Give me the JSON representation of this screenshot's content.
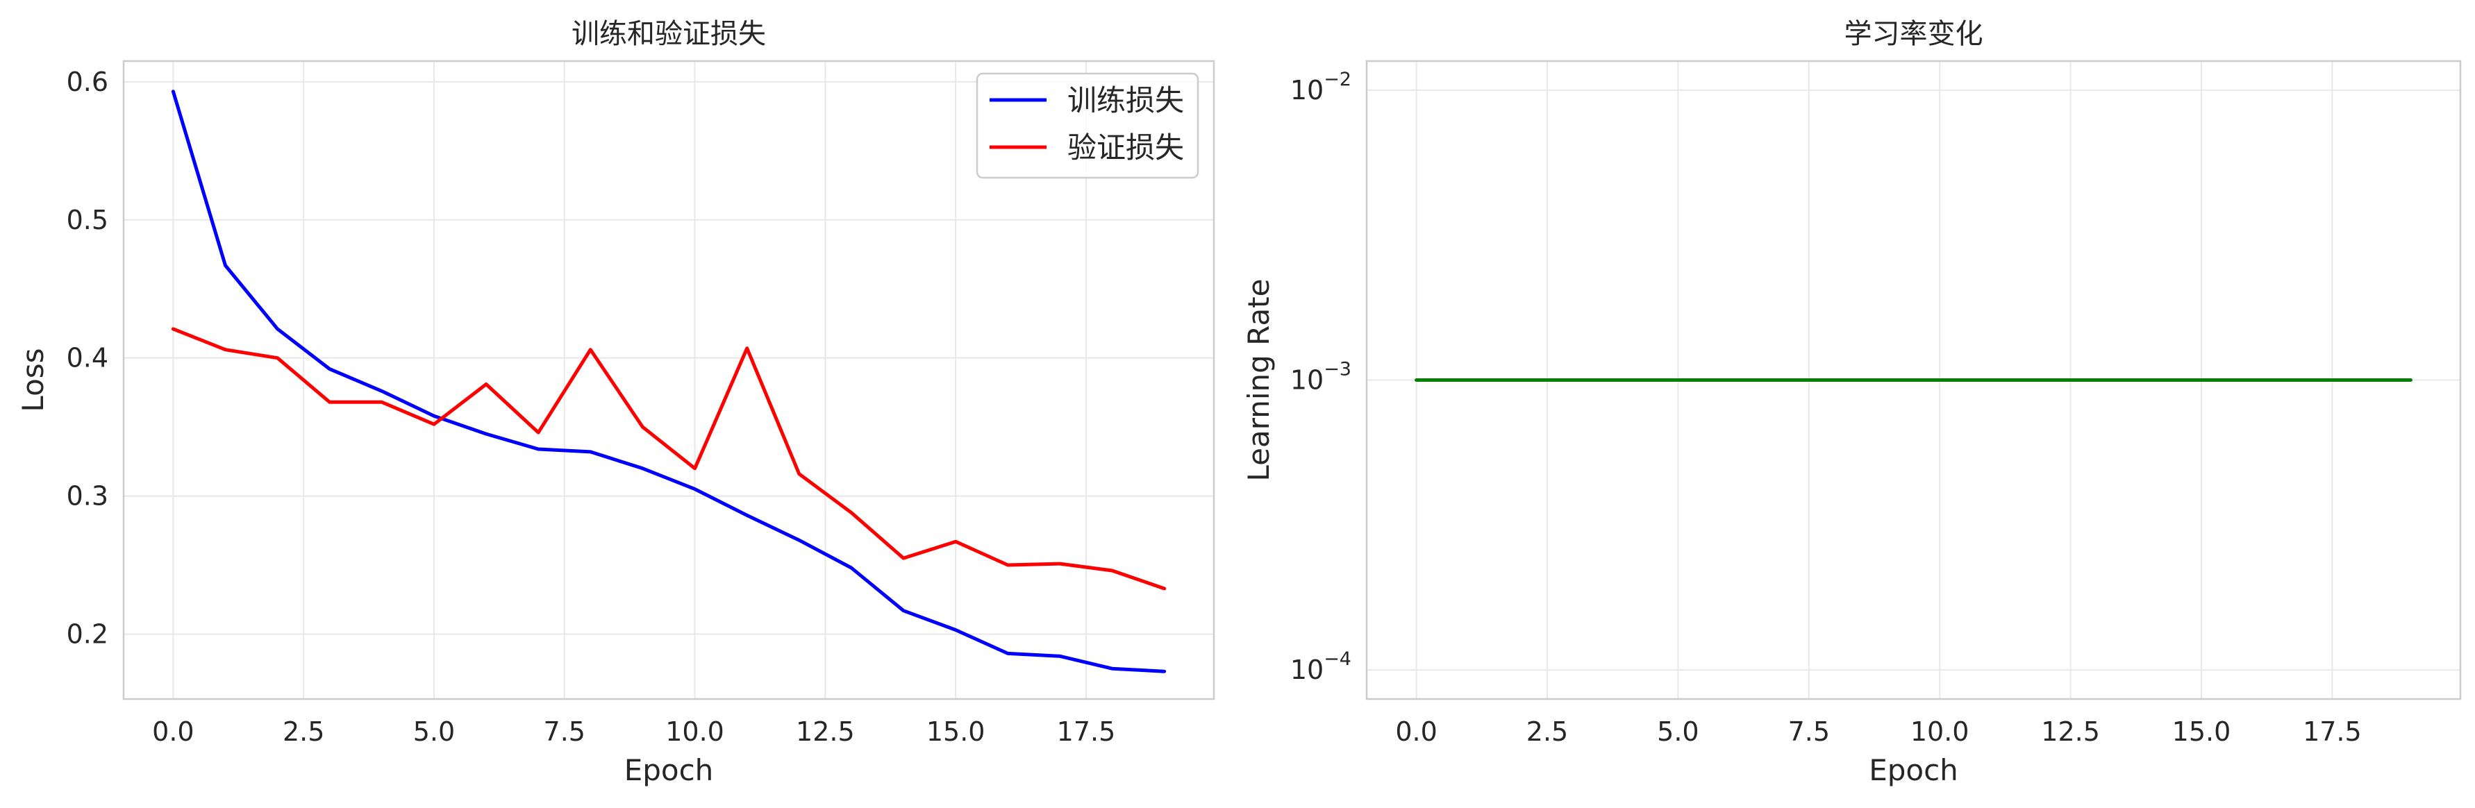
{
  "chart_data": [
    {
      "type": "line",
      "title": "训练和验证损失",
      "xlabel": "Epoch",
      "ylabel": "Loss",
      "xlim": [
        -0.95,
        19.95
      ],
      "ylim": [
        0.153,
        0.615
      ],
      "xticks": [
        0.0,
        2.5,
        5.0,
        7.5,
        10.0,
        12.5,
        15.0,
        17.5
      ],
      "xtick_labels": [
        "0.0",
        "2.5",
        "5.0",
        "7.5",
        "10.0",
        "12.5",
        "15.0",
        "17.5"
      ],
      "yticks": [
        0.2,
        0.3,
        0.4,
        0.5,
        0.6
      ],
      "ytick_labels": [
        "0.2",
        "0.3",
        "0.4",
        "0.5",
        "0.6"
      ],
      "grid": true,
      "legend_position": "top-right",
      "x": [
        0,
        1,
        2,
        3,
        4,
        5,
        6,
        7,
        8,
        9,
        10,
        11,
        12,
        13,
        14,
        15,
        16,
        17,
        18,
        19
      ],
      "series": [
        {
          "name": "训练损失",
          "color": "#0000ff",
          "values": [
            0.593,
            0.467,
            0.421,
            0.392,
            0.376,
            0.358,
            0.345,
            0.334,
            0.332,
            0.32,
            0.305,
            0.286,
            0.268,
            0.248,
            0.217,
            0.203,
            0.186,
            0.184,
            0.175,
            0.173
          ]
        },
        {
          "name": "验证损失",
          "color": "#ff0000",
          "values": [
            0.421,
            0.406,
            0.4,
            0.368,
            0.368,
            0.352,
            0.381,
            0.346,
            0.406,
            0.35,
            0.32,
            0.407,
            0.316,
            0.288,
            0.255,
            0.267,
            0.25,
            0.251,
            0.246,
            0.233
          ]
        }
      ]
    },
    {
      "type": "line",
      "title": "学习率变化",
      "xlabel": "Epoch",
      "ylabel": "Learning Rate",
      "yscale": "log",
      "xlim": [
        -0.95,
        19.95
      ],
      "ylim": [
        7.94e-05,
        0.0126
      ],
      "xticks": [
        0.0,
        2.5,
        5.0,
        7.5,
        10.0,
        12.5,
        15.0,
        17.5
      ],
      "xtick_labels": [
        "0.0",
        "2.5",
        "5.0",
        "7.5",
        "10.0",
        "12.5",
        "15.0",
        "17.5"
      ],
      "yticks": [
        0.0001,
        0.001,
        0.01
      ],
      "ytick_labels": [
        {
          "base": "10",
          "exp": "−4"
        },
        {
          "base": "10",
          "exp": "−3"
        },
        {
          "base": "10",
          "exp": "−2"
        }
      ],
      "grid": true,
      "x": [
        0,
        1,
        2,
        3,
        4,
        5,
        6,
        7,
        8,
        9,
        10,
        11,
        12,
        13,
        14,
        15,
        16,
        17,
        18,
        19
      ],
      "series": [
        {
          "name": "Learning Rate",
          "color": "#008000",
          "values": [
            0.001,
            0.001,
            0.001,
            0.001,
            0.001,
            0.001,
            0.001,
            0.001,
            0.001,
            0.001,
            0.001,
            0.001,
            0.001,
            0.001,
            0.001,
            0.001,
            0.001,
            0.001,
            0.001,
            0.001
          ]
        }
      ]
    }
  ]
}
